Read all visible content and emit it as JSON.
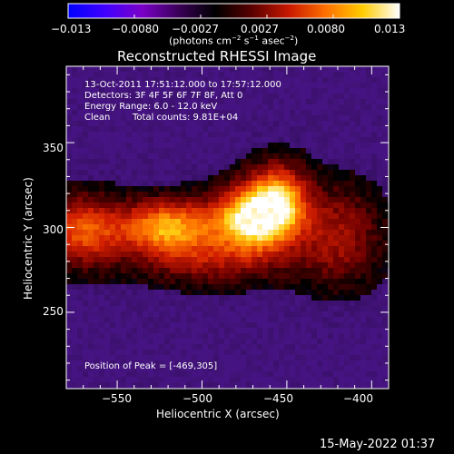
{
  "colorbar": {
    "tick_labels": [
      "−0.013",
      "−0.0080",
      "−0.0027",
      "0.0027",
      "0.0080",
      "0.013"
    ],
    "units_prefix": "(photons cm",
    "units_exp1": "−2",
    "units_mid": " s",
    "units_exp2": "−1",
    "units_mid2": " asec",
    "units_exp3": "−2",
    "units_suffix": ")",
    "colors": [
      "#0000ff",
      "#4000ff",
      "#7a00c8",
      "#3a0058",
      "#000000",
      "#5a0000",
      "#c81800",
      "#ff7000",
      "#ffcc00",
      "#ffffff"
    ]
  },
  "title": "Reconstructed RHESSI Image",
  "annotations": {
    "time_range": "13-Oct-2011 17:51:12.000 to 17:57:12.000",
    "detectors": "Detectors: 3F 4F 5F 6F 7F 8F, Att 0",
    "energy": "Energy Range: 6.0 - 12.0 keV",
    "clean_label": "Clean",
    "total_counts": "Total counts: 9.81E+04",
    "peak": "Position of Peak = [-469,305]"
  },
  "axes": {
    "xlabel": "Heliocentric X (arcsec)",
    "ylabel": "Heliocentric Y (arcsec)",
    "xticks": [
      "−550",
      "−500",
      "−450",
      "−400"
    ],
    "yticks": [
      "350",
      "300",
      "250"
    ]
  },
  "timestamp": "15-May-2022 01:37",
  "chart_data": {
    "type": "heatmap",
    "title": "Reconstructed RHESSI Image",
    "xlabel": "Heliocentric X (arcsec)",
    "ylabel": "Heliocentric Y (arcsec)",
    "xlim": [
      -580,
      -390
    ],
    "ylim": [
      205,
      395
    ],
    "peak": [
      -469,
      305
    ],
    "sources": [
      {
        "x": -469,
        "y": 305,
        "strength": 1.0,
        "sx": 16,
        "sy": 13
      },
      {
        "x": -520,
        "y": 300,
        "strength": 0.75,
        "sx": 20,
        "sy": 11
      },
      {
        "x": -570,
        "y": 298,
        "strength": 0.55,
        "sx": 16,
        "sy": 14
      },
      {
        "x": -455,
        "y": 318,
        "strength": 0.6,
        "sx": 12,
        "sy": 14
      },
      {
        "x": -420,
        "y": 295,
        "strength": 0.35,
        "sx": 18,
        "sy": 20
      },
      {
        "x": -495,
        "y": 280,
        "strength": 0.3,
        "sx": 30,
        "sy": 10
      }
    ],
    "colorbar_range": [
      -0.013,
      0.013
    ]
  }
}
